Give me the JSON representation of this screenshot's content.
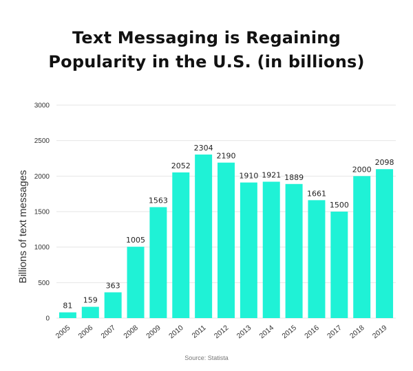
{
  "title_line1": "Text Messaging is Regaining",
  "title_line2": "Popularity in the U.S. (in billions)",
  "source": "Source: Statista",
  "colors": {
    "bar": "#1ff2d6",
    "grid": "#e4e4e4",
    "axis_text": "#333333",
    "label_text": "#222222"
  },
  "chart_data": {
    "type": "bar",
    "title": "Text Messaging is Regaining Popularity in the U.S. (in billions)",
    "xlabel": "",
    "ylabel": "Billions of text messages",
    "categories": [
      "2005",
      "2006",
      "2007",
      "2008",
      "2009",
      "2010",
      "2011",
      "2012",
      "2013",
      "2014",
      "2015",
      "2016",
      "2017",
      "2018",
      "2019"
    ],
    "values": [
      81,
      159,
      363,
      1005,
      1563,
      2052,
      2304,
      2190,
      1910,
      1921,
      1889,
      1661,
      1500,
      2000,
      2098
    ],
    "ylim": [
      0,
      3000
    ],
    "yticks": [
      0,
      500,
      1000,
      1500,
      2000,
      2500,
      3000
    ],
    "grid": true,
    "legend": "none"
  }
}
